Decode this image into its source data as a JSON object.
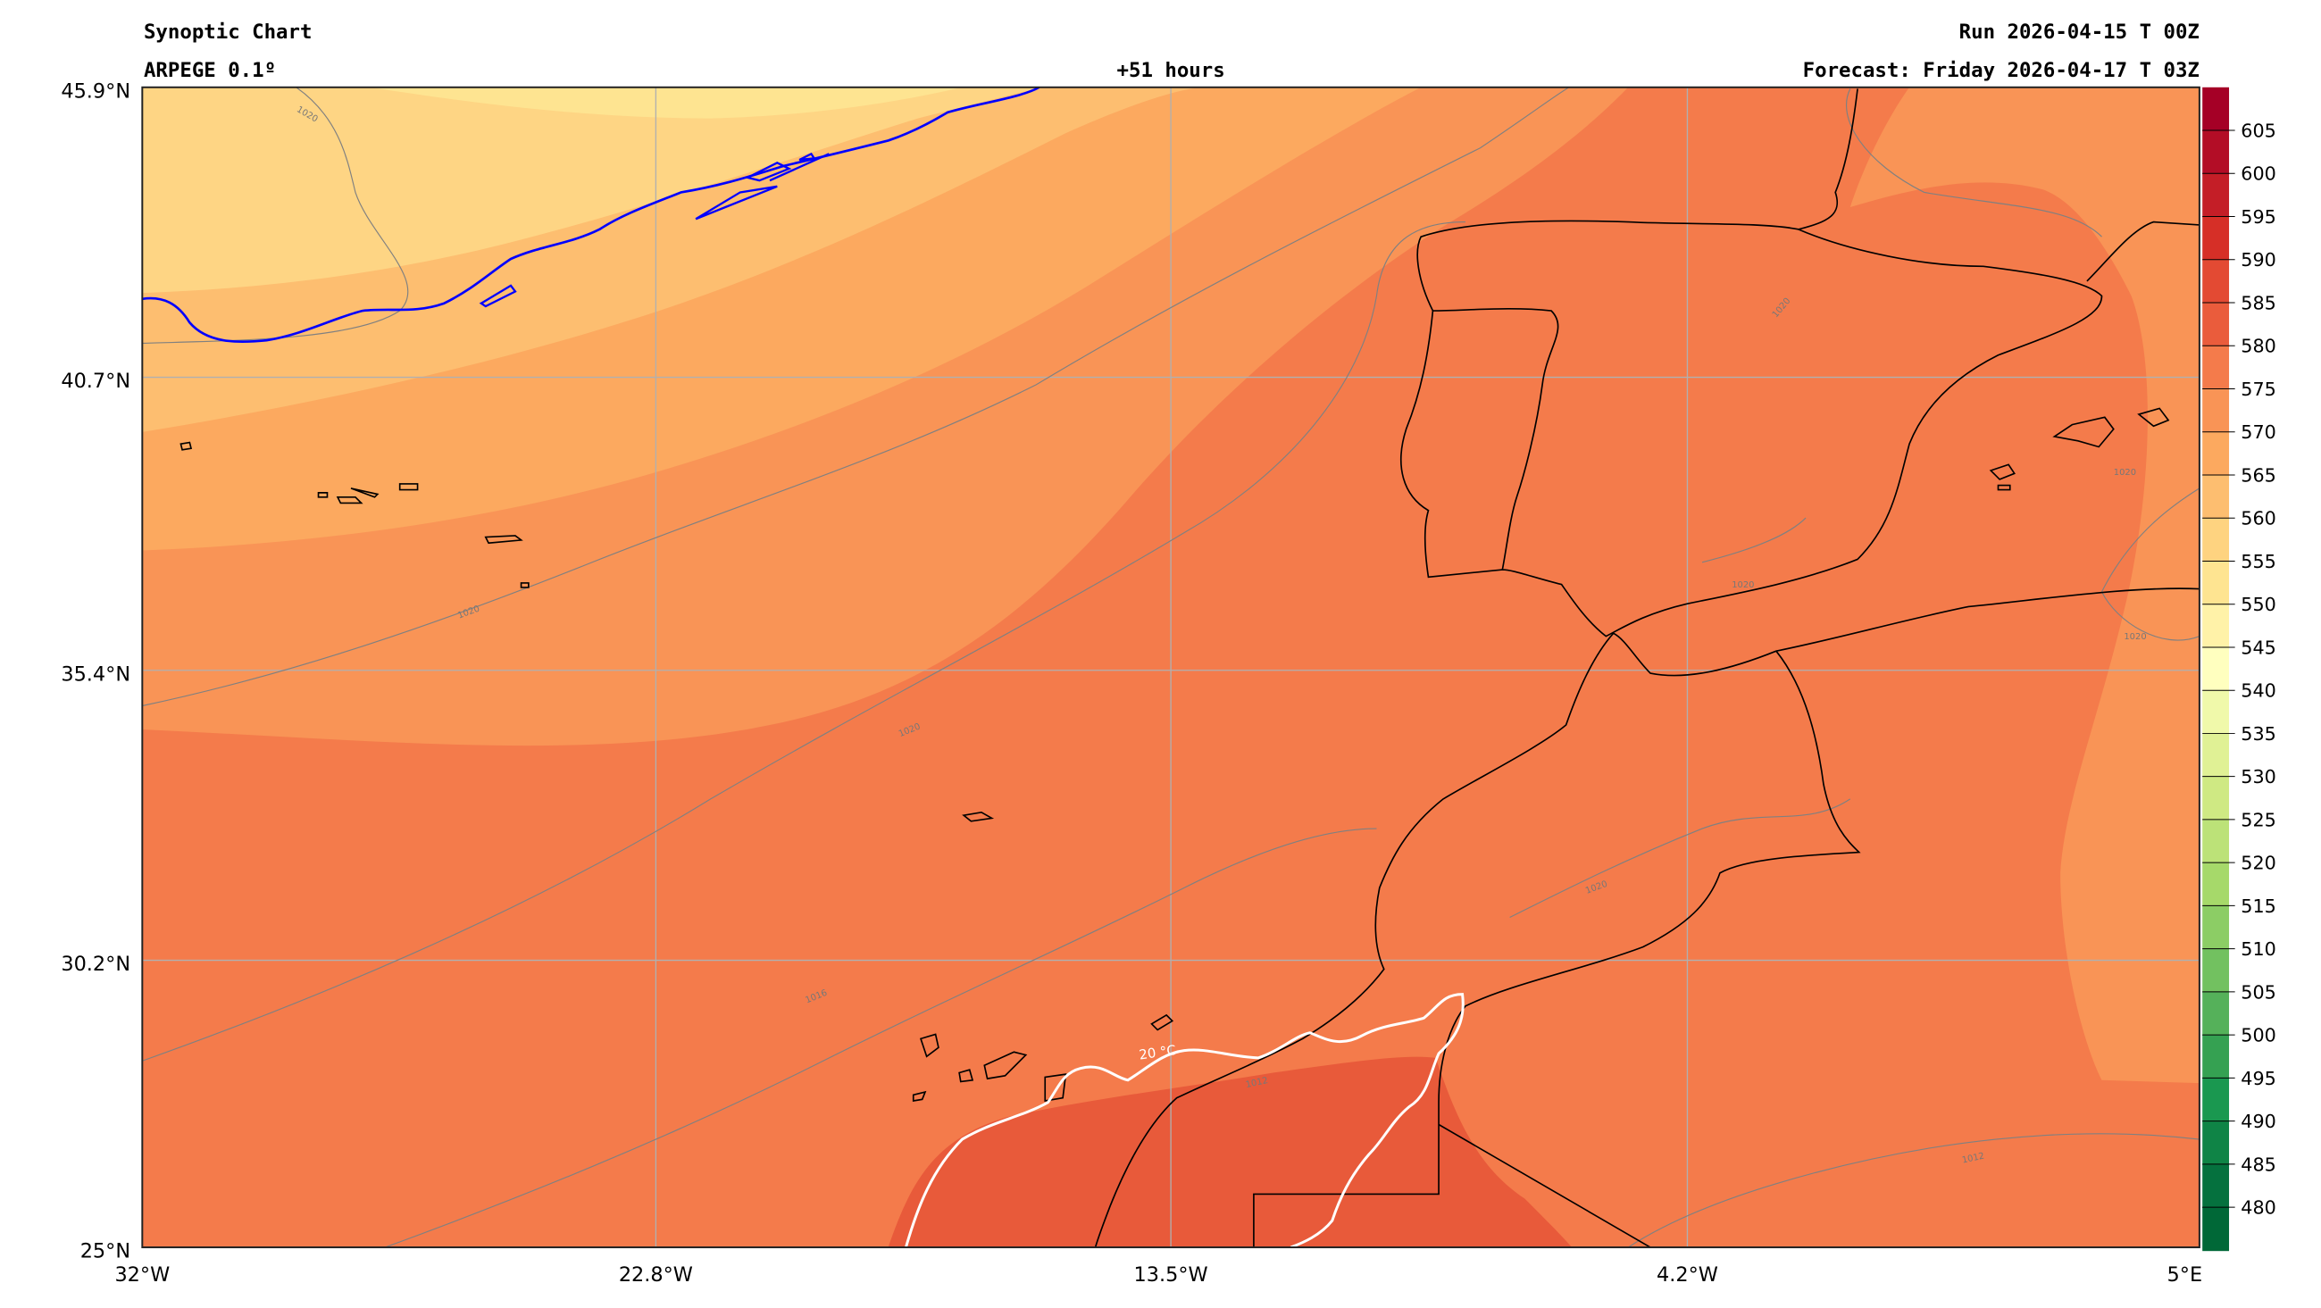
{
  "header": {
    "title": "Synoptic Chart",
    "model": "ARPEGE 0.1º",
    "lead_time": "+51 hours",
    "run": "Run 2026-04-15 T 00Z",
    "forecast": "Forecast: Friday 2026-04-17 T 03Z"
  },
  "axes": {
    "lat_labels": [
      "45.9°N",
      "40.7°N",
      "35.4°N",
      "30.2°N",
      "25°N"
    ],
    "lon_labels": [
      "32°W",
      "22.8°W",
      "13.5°W",
      "4.2°W",
      "5°E"
    ]
  },
  "isobar_labels": [
    "1020",
    "1020",
    "1020",
    "1020",
    "1020",
    "1020",
    "1020",
    "1016",
    "1012",
    "1012",
    "1020"
  ],
  "temperature_label": "20 °C",
  "colorbar": {
    "levels": [
      605,
      600,
      595,
      590,
      585,
      580,
      575,
      570,
      565,
      560,
      555,
      550,
      545,
      540,
      535,
      530,
      525,
      520,
      515,
      510,
      505,
      500,
      495,
      490,
      485,
      480
    ],
    "colors": [
      "#a50026",
      "#b30d26",
      "#c41e27",
      "#d62f27",
      "#e34a33",
      "#ea5c3c",
      "#f47b4b",
      "#f99456",
      "#fca95f",
      "#fdbe70",
      "#fed380",
      "#fee491",
      "#fff2a8",
      "#ffffbf",
      "#f0f9aa",
      "#e0f195",
      "#cfe983",
      "#bce278",
      "#a6d96a",
      "#8ccd65",
      "#72c160",
      "#55b15a",
      "#35a152",
      "#1a9850",
      "#0f8446",
      "#05713e",
      "#006837"
    ]
  },
  "map_colors": {
    "c550": "#fee491",
    "c555": "#fed584",
    "c560": "#fdbe70",
    "c565": "#fca95f",
    "c570": "#f99456",
    "c575": "#f47b4b",
    "c580": "#e85a3a",
    "contour_552": "#0000ff",
    "isotherm": "#ffffff"
  }
}
